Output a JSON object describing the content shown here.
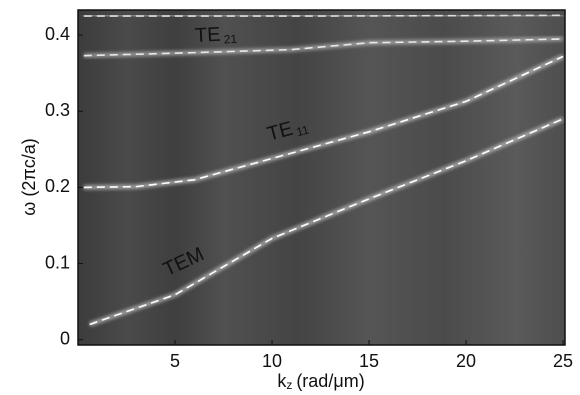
{
  "chart_data": {
    "type": "line",
    "xlabel": {
      "main": "k",
      "sub": "z",
      "rest": "(rad/μm)"
    },
    "ylabel": "ω (2πc/a)",
    "xlim": [
      0,
      25.1
    ],
    "ylim": [
      -0.007,
      0.433
    ],
    "xticks": [
      5,
      10,
      15,
      20,
      25
    ],
    "yticks": [
      0,
      0.1,
      0.2,
      0.3,
      0.4
    ],
    "annotations": [
      {
        "text": "TE",
        "sub": "21"
      },
      {
        "text": "TE",
        "sub": "11"
      },
      {
        "text": "TEM"
      }
    ],
    "series": [
      {
        "color": "#ffffff",
        "x": [
          0.6,
          5,
          10,
          15,
          20,
          25
        ],
        "values": [
          0.02,
          0.059,
          0.133,
          0.185,
          0.235,
          0.29
        ]
      },
      {
        "color": "#ffffff",
        "x": [
          0.3,
          3,
          6,
          10,
          15,
          20,
          25
        ],
        "values": [
          0.2,
          0.201,
          0.21,
          0.238,
          0.273,
          0.313,
          0.372
        ]
      },
      {
        "color": "#e8e8e8",
        "x": [
          0.3,
          6,
          11,
          15,
          20,
          25
        ],
        "values": [
          0.373,
          0.377,
          0.381,
          0.39,
          0.392,
          0.395
        ]
      },
      {
        "color": "#dddddd",
        "x": [
          0.3,
          12,
          25
        ],
        "values": [
          0.425,
          0.425,
          0.426
        ]
      }
    ]
  }
}
